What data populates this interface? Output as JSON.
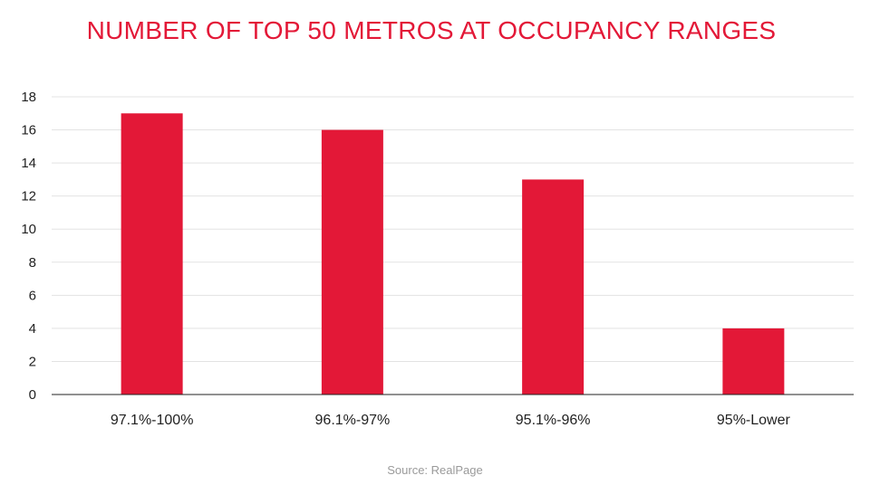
{
  "chart_data": {
    "type": "bar",
    "title": "NUMBER OF TOP 50 METROS AT OCCUPANCY RANGES",
    "categories": [
      "97.1%-100%",
      "96.1%-97%",
      "95.1%-96%",
      "95%-Lower"
    ],
    "values": [
      17,
      16,
      13,
      4
    ],
    "xlabel": "",
    "ylabel": "",
    "ylim": [
      0,
      18
    ],
    "yticks": [
      0,
      2,
      4,
      6,
      8,
      10,
      12,
      14,
      16,
      18
    ],
    "grid": true,
    "legend": "none",
    "bar_color": "#e31837",
    "source": "Source: RealPage"
  }
}
